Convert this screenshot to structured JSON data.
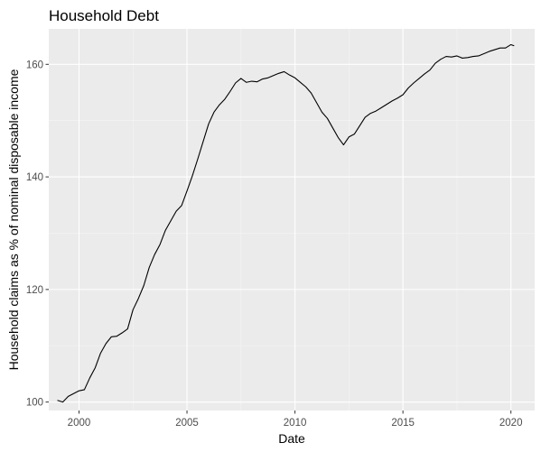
{
  "chart_data": {
    "type": "line",
    "title": "Household Debt",
    "xlabel": "Date",
    "ylabel": "Household claims as % of nominal disposable income",
    "xlim": [
      1998.6,
      2021.1
    ],
    "ylim": [
      98.5,
      166.3
    ],
    "x_ticks": [
      2000,
      2005,
      2010,
      2015,
      2020
    ],
    "x_tick_labels": [
      "2000",
      "2005",
      "2010",
      "2015",
      "2020"
    ],
    "y_ticks": [
      100,
      120,
      140,
      160
    ],
    "y_tick_labels": [
      "100",
      "120",
      "140",
      "160"
    ],
    "grid": true,
    "legend": "none",
    "colors": {
      "panel": "#ebebeb",
      "grid_major": "#ffffff",
      "grid_minor": "#f5f5f5",
      "line": "#000000",
      "tick_text": "#4d4d4d"
    },
    "series": [
      {
        "x": [
          1999.0,
          1999.25,
          1999.5,
          1999.75,
          2000.0,
          2000.25,
          2000.5,
          2000.75,
          2001.0,
          2001.25,
          2001.5,
          2001.75,
          2002.0,
          2002.25,
          2002.5,
          2002.75,
          2003.0,
          2003.25,
          2003.5,
          2003.75,
          2004.0,
          2004.25,
          2004.5,
          2004.75,
          2005.0,
          2005.25,
          2005.5,
          2005.75,
          2006.0,
          2006.25,
          2006.5,
          2006.75,
          2007.0,
          2007.25,
          2007.5,
          2007.75,
          2008.0,
          2008.25,
          2008.5,
          2008.75,
          2009.0,
          2009.25,
          2009.5,
          2009.75,
          2010.0,
          2010.25,
          2010.5,
          2010.75,
          2011.0,
          2011.25,
          2011.5,
          2011.75,
          2012.0,
          2012.25,
          2012.5,
          2012.75,
          2013.0,
          2013.25,
          2013.5,
          2013.75,
          2014.0,
          2014.25,
          2014.5,
          2014.75,
          2015.0,
          2015.25,
          2015.5,
          2015.75,
          2016.0,
          2016.25,
          2016.5,
          2016.75,
          2017.0,
          2017.25,
          2017.5,
          2017.75,
          2018.0,
          2018.25,
          2018.5,
          2018.75,
          2019.0,
          2019.25,
          2019.5,
          2019.75,
          2020.0,
          2020.15
        ],
        "y": [
          100.3,
          100.0,
          101.0,
          101.5,
          102.0,
          102.2,
          104.3,
          106.1,
          108.7,
          110.4,
          111.6,
          111.7,
          112.3,
          113.0,
          116.4,
          118.4,
          120.7,
          123.9,
          126.2,
          128.0,
          130.5,
          132.2,
          133.9,
          134.9,
          137.5,
          140.2,
          143.2,
          146.3,
          149.4,
          151.5,
          152.8,
          153.8,
          155.2,
          156.7,
          157.5,
          156.8,
          157.0,
          156.9,
          157.4,
          157.6,
          158.0,
          158.4,
          158.7,
          158.1,
          157.6,
          156.8,
          156.0,
          154.9,
          153.2,
          151.5,
          150.4,
          148.7,
          147.0,
          145.7,
          147.1,
          147.6,
          149.1,
          150.6,
          151.3,
          151.7,
          152.3,
          152.9,
          153.5,
          154.0,
          154.6,
          155.8,
          156.7,
          157.5,
          158.3,
          159.0,
          160.2,
          160.9,
          161.4,
          161.3,
          161.5,
          161.1,
          161.2,
          161.4,
          161.5,
          161.9,
          162.3,
          162.6,
          162.9,
          162.9,
          163.5,
          163.3
        ]
      }
    ]
  }
}
